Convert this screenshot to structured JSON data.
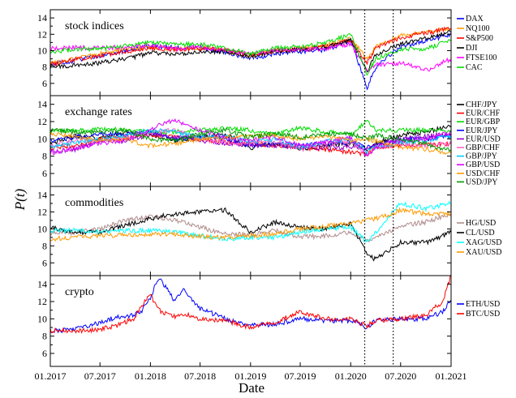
{
  "figure": {
    "ylabel": "P(t)",
    "xlabel": "Date",
    "x_tick_labels": [
      "01.2017",
      "07.2017",
      "01.2018",
      "07.2018",
      "01.2019",
      "07.2019",
      "01.2020",
      "07.2020",
      "01.2021"
    ]
  },
  "chart_data": [
    {
      "type": "line",
      "title": "stock indices",
      "ylim": [
        4.5,
        15
      ],
      "yticks": [
        6,
        8,
        10,
        12,
        14
      ],
      "x": [
        "2017-01",
        "2017-04",
        "2017-07",
        "2017-10",
        "2018-01",
        "2018-04",
        "2018-07",
        "2018-10",
        "2019-01",
        "2019-04",
        "2019-07",
        "2019-10",
        "2020-01",
        "2020-03",
        "2020-04",
        "2020-07",
        "2020-10",
        "2021-01"
      ],
      "series": [
        {
          "name": "DAX",
          "color": "#0000ff",
          "values": [
            8.3,
            8.8,
            9.4,
            10.0,
            10.6,
            10.4,
            10.3,
            9.8,
            9.0,
            9.6,
            9.9,
            10.1,
            11.2,
            5.5,
            8.0,
            10.5,
            11.2,
            12.0
          ]
        },
        {
          "name": "NQ100",
          "color": "#ff9900",
          "values": [
            8.4,
            9.0,
            9.6,
            10.2,
            10.4,
            10.2,
            10.4,
            10.0,
            9.3,
            10.0,
            10.2,
            10.6,
            11.5,
            9.0,
            10.5,
            11.8,
            12.3,
            12.8
          ]
        },
        {
          "name": "S&P500",
          "color": "#ff0000",
          "values": [
            8.3,
            8.9,
            9.4,
            9.9,
            10.3,
            10.1,
            10.3,
            10.1,
            9.4,
            10.0,
            10.2,
            10.5,
            11.3,
            8.5,
            10.3,
            11.6,
            12.2,
            12.7
          ]
        },
        {
          "name": "DJI",
          "color": "#000000",
          "values": [
            8.0,
            8.2,
            8.5,
            9.0,
            9.7,
            9.6,
            9.8,
            9.9,
            9.3,
            9.9,
            10.1,
            10.4,
            11.2,
            7.5,
            9.5,
            10.8,
            11.5,
            12.3
          ]
        },
        {
          "name": "FTSE100",
          "color": "#ff00ff",
          "values": [
            10.2,
            10.4,
            10.3,
            10.5,
            10.6,
            10.2,
            10.5,
            10.0,
            9.6,
            10.0,
            10.1,
            10.2,
            10.8,
            7.5,
            8.3,
            8.5,
            7.6,
            9.0
          ]
        },
        {
          "name": "CAC",
          "color": "#00dd00",
          "values": [
            9.8,
            10.2,
            10.2,
            10.6,
            11.0,
            10.8,
            10.8,
            10.3,
            9.6,
            10.3,
            10.5,
            10.9,
            12.0,
            7.2,
            9.0,
            10.2,
            10.2,
            11.3
          ]
        }
      ]
    },
    {
      "type": "line",
      "title": "exchange rates",
      "ylim": [
        4.5,
        15
      ],
      "yticks": [
        6,
        8,
        10,
        12,
        14
      ],
      "x": [
        "2017-01",
        "2017-04",
        "2017-07",
        "2017-10",
        "2018-01",
        "2018-04",
        "2018-07",
        "2018-10",
        "2019-01",
        "2019-04",
        "2019-07",
        "2019-10",
        "2020-01",
        "2020-03",
        "2020-04",
        "2020-07",
        "2020-10",
        "2021-01"
      ],
      "series": [
        {
          "name": "CHF/JPY",
          "color": "#000000",
          "values": [
            9.5,
            10.3,
            10.0,
            10.8,
            10.5,
            9.8,
            10.2,
            10.6,
            9.0,
            9.4,
            8.8,
            9.3,
            9.5,
            8.8,
            9.5,
            10.4,
            10.8,
            11.5
          ]
        },
        {
          "name": "EUR/CHF",
          "color": "#ff0000",
          "values": [
            9.0,
            9.2,
            10.0,
            10.2,
            10.5,
            10.2,
            10.0,
            9.6,
            9.4,
            9.3,
            9.0,
            8.8,
            8.5,
            8.2,
            9.0,
            9.3,
            9.3,
            9.4
          ]
        },
        {
          "name": "EUR/GBP",
          "color": "#00dd00",
          "values": [
            10.8,
            11.0,
            11.2,
            11.0,
            10.8,
            10.8,
            11.0,
            11.2,
            11.0,
            10.5,
            11.3,
            10.8,
            10.5,
            12.0,
            11.0,
            11.0,
            11.0,
            10.8
          ]
        },
        {
          "name": "EUR/JPY",
          "color": "#0000ff",
          "values": [
            9.8,
            10.2,
            10.5,
            10.6,
            10.8,
            10.0,
            10.2,
            10.0,
            9.2,
            9.4,
            9.2,
            9.5,
            9.6,
            9.0,
            9.4,
            10.0,
            10.0,
            10.4
          ]
        },
        {
          "name": "EUR/USD",
          "color": "#9900cc",
          "values": [
            8.5,
            8.8,
            9.8,
            9.8,
            10.5,
            10.3,
            9.8,
            9.5,
            9.3,
            9.2,
            9.0,
            9.0,
            9.0,
            9.0,
            9.2,
            10.0,
            10.3,
            10.6
          ]
        },
        {
          "name": "GBP/CHF",
          "color": "#ff66cc",
          "values": [
            9.2,
            9.8,
            9.8,
            10.2,
            10.8,
            11.0,
            10.0,
            9.6,
            9.5,
            9.8,
            8.8,
            9.4,
            9.6,
            8.2,
            9.0,
            9.4,
            9.2,
            9.5
          ]
        },
        {
          "name": "GBP/JPY",
          "color": "#00ccff",
          "values": [
            9.0,
            9.6,
            9.9,
            10.4,
            11.0,
            10.8,
            10.2,
            10.4,
            9.6,
            10.0,
            9.0,
            9.7,
            10.0,
            8.5,
            9.0,
            9.6,
            9.8,
            10.4
          ]
        },
        {
          "name": "GBP/USD",
          "color": "#dd00ff",
          "values": [
            8.4,
            8.9,
            9.5,
            9.8,
            11.2,
            12.2,
            11.0,
            10.2,
            9.8,
            10.2,
            9.2,
            9.6,
            10.2,
            8.0,
            9.0,
            9.8,
            10.0,
            10.8
          ]
        },
        {
          "name": "USD/CHF",
          "color": "#ff9900",
          "values": [
            10.6,
            10.3,
            9.8,
            10.0,
            9.2,
            9.4,
            10.0,
            10.2,
            10.3,
            10.4,
            10.0,
            10.2,
            9.8,
            10.0,
            9.8,
            9.0,
            8.8,
            8.3
          ]
        },
        {
          "name": "USD/JPY",
          "color": "#009900",
          "values": [
            11.0,
            10.8,
            10.8,
            11.0,
            10.0,
            9.8,
            10.6,
            11.0,
            10.2,
            10.6,
            10.2,
            10.6,
            10.6,
            10.0,
            10.4,
            10.0,
            9.4,
            8.6
          ]
        }
      ]
    },
    {
      "type": "line",
      "title": "commodities",
      "ylim": [
        4.5,
        15
      ],
      "yticks": [
        6,
        8,
        10,
        12,
        14
      ],
      "x": [
        "2017-01",
        "2017-04",
        "2017-07",
        "2017-10",
        "2018-01",
        "2018-04",
        "2018-07",
        "2018-10",
        "2019-01",
        "2019-04",
        "2019-07",
        "2019-10",
        "2020-01",
        "2020-03",
        "2020-04",
        "2020-07",
        "2020-10",
        "2021-01"
      ],
      "series": [
        {
          "name": "HG/USD",
          "color": "#b08c8c",
          "values": [
            9.5,
            9.6,
            10.0,
            11.0,
            11.5,
            11.0,
            10.2,
            9.4,
            9.3,
            9.8,
            9.0,
            9.2,
            9.6,
            8.6,
            9.0,
            10.4,
            10.8,
            11.8
          ]
        },
        {
          "name": "CL/USD",
          "color": "#000000",
          "values": [
            10.2,
            9.6,
            9.6,
            10.4,
            11.2,
            11.8,
            12.0,
            12.2,
            9.6,
            10.8,
            10.2,
            10.0,
            10.6,
            7.0,
            6.4,
            8.4,
            8.4,
            9.6
          ]
        },
        {
          "name": "XAG/USD",
          "color": "#00ffff",
          "values": [
            9.8,
            9.8,
            9.6,
            9.8,
            9.8,
            9.6,
            9.2,
            8.8,
            9.0,
            9.0,
            9.6,
            10.0,
            10.2,
            8.4,
            9.6,
            13.0,
            12.4,
            13.0
          ]
        },
        {
          "name": "XAU/USD",
          "color": "#ff9900",
          "values": [
            8.8,
            9.0,
            9.2,
            9.3,
            9.4,
            9.4,
            9.1,
            9.0,
            9.2,
            9.4,
            10.0,
            10.3,
            10.6,
            11.0,
            11.2,
            12.2,
            11.8,
            11.8
          ]
        }
      ]
    },
    {
      "type": "line",
      "title": "crypto",
      "ylim": [
        4.5,
        15
      ],
      "yticks": [
        6,
        8,
        10,
        12,
        14
      ],
      "x": [
        "2017-01",
        "2017-04",
        "2017-07",
        "2017-09",
        "2017-11",
        "2017-12",
        "2018-01",
        "2018-02",
        "2018-04",
        "2018-05",
        "2018-07",
        "2018-10",
        "2019-01",
        "2019-04",
        "2019-07",
        "2019-10",
        "2020-01",
        "2020-03",
        "2020-04",
        "2020-07",
        "2020-10",
        "2020-12",
        "2021-01"
      ],
      "series": [
        {
          "name": "ETH/USD",
          "color": "#0000ff",
          "values": [
            8.6,
            8.8,
            9.6,
            10.2,
            10.4,
            11.0,
            12.5,
            14.8,
            12.0,
            13.5,
            11.2,
            10.0,
            9.2,
            9.4,
            10.0,
            9.8,
            9.8,
            9.0,
            9.8,
            10.0,
            10.0,
            10.8,
            12.2
          ]
        },
        {
          "name": "BTC/USD",
          "color": "#ff0000",
          "values": [
            8.6,
            8.6,
            8.8,
            9.2,
            10.0,
            11.5,
            12.8,
            11.0,
            10.2,
            10.6,
            10.0,
            9.8,
            9.0,
            9.6,
            10.8,
            10.0,
            10.0,
            9.2,
            9.8,
            10.0,
            10.4,
            12.0,
            15.0
          ]
        }
      ]
    }
  ]
}
